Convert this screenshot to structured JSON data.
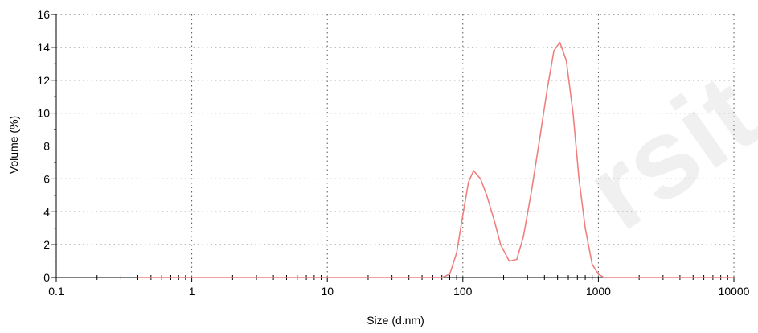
{
  "chart_data": {
    "type": "line",
    "title": "",
    "xlabel": "Size (d.nm)",
    "ylabel": "Volume (%)",
    "xscale": "log",
    "xlim": [
      0.1,
      10000
    ],
    "ylim": [
      0,
      16
    ],
    "grid": true,
    "x_tick_labels": [
      "0.1",
      "1",
      "10",
      "100",
      "1000",
      "10000"
    ],
    "y_tick_labels": [
      "0",
      "2",
      "4",
      "6",
      "8",
      "10",
      "12",
      "14",
      "16"
    ],
    "series": [
      {
        "name": "",
        "color": "#f08080",
        "x": [
          0.4,
          70,
          80,
          90,
          100,
          110,
          120,
          135,
          150,
          170,
          190,
          220,
          250,
          280,
          320,
          370,
          420,
          470,
          520,
          580,
          650,
          720,
          800,
          900,
          1000,
          1100,
          2000,
          5000,
          10000
        ],
        "y": [
          0,
          0,
          0.2,
          1.5,
          3.8,
          5.8,
          6.5,
          6.0,
          5.0,
          3.5,
          2.0,
          1.0,
          1.1,
          2.5,
          5.2,
          8.5,
          11.5,
          13.8,
          14.3,
          13.2,
          10.0,
          6.0,
          3.0,
          0.8,
          0.2,
          0,
          0,
          0,
          0
        ]
      }
    ],
    "watermark_text": "rsit"
  }
}
